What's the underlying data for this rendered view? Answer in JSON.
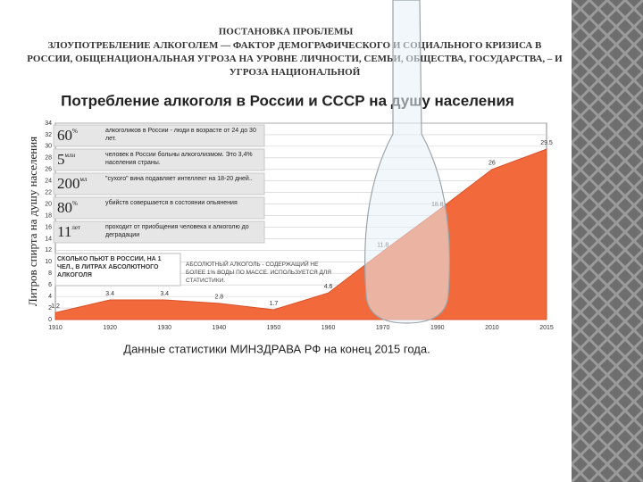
{
  "slide": {
    "heading": "ПОСТАНОВКА ПРОБЛЕМЫ",
    "subheading": "ЗЛОУПОТРЕБЛЕНИЕ АЛКОГОЛЕМ — ФАКТОР ДЕМОГРАФИЧЕСКОГО И СОЦИАЛЬНОГО КРИЗИСА В РОССИИ, ОБЩЕНАЦИОНАЛЬНАЯ УГРОЗА НА УРОВНЕ ЛИЧНОСТИ, СЕМЬИ, ОБЩЕСТВА, ГОСУДАРСТВА, – И УГРОЗА НАЦИОНАЛЬНОЙ",
    "caption": "Данные статистики МИНЗДРАВА РФ на конец 2015 года."
  },
  "facts": [
    {
      "number": "60",
      "unit": "%",
      "text": "алкоголиков в России - люди в возрасте от 24 до 30 лет."
    },
    {
      "number": "5",
      "unit": "млн",
      "text": "человек в России больны алкоголизмом. Это 3,4% населения страны."
    },
    {
      "number": "200",
      "unit": "мл",
      "text": "\"сухого\" вина подавляет интеллект на 18-20 дней.."
    },
    {
      "number": "80",
      "unit": "%",
      "text": "убийств совершается в состоянии опьянения"
    },
    {
      "number": "11",
      "unit": "лет",
      "text": "проходит от приобщения человека к алкоголю до деградации"
    }
  ],
  "notes": {
    "how_much": "СКОЛЬКО ПЬЮТ В РОССИИ, НА 1 ЧЕЛ., В ЛИТРАХ АБСОЛЮТНОГО АЛКОГОЛЯ",
    "definition": "АБСОЛЮТНЫЙ АЛКОГОЛЬ - СОДЕРЖАЩИЙ НЕ БОЛЕЕ 1% ВОДЫ ПО МАССЕ. ИСПОЛЬЗУЕТСЯ ДЛЯ СТАТИСТИКИ."
  },
  "chart_data": {
    "type": "area",
    "title": "Потребление алкоголя в России и СССР на душу населения",
    "y_label": "Литров спирта на душу населения",
    "categories": [
      "1910",
      "1920",
      "1930",
      "1940",
      "1950",
      "1960",
      "1970",
      "1990",
      "2010",
      "2015"
    ],
    "values": [
      1.2,
      3.4,
      3.4,
      2.8,
      1.7,
      4.6,
      11.8,
      18.8,
      26,
      29.5
    ],
    "color": "#f26a3c",
    "ylim": [
      0,
      34
    ],
    "yticks": [
      0,
      2,
      4,
      6,
      8,
      10,
      12,
      14,
      16,
      18,
      20,
      22,
      24,
      26,
      28,
      30,
      32,
      34
    ],
    "grid": true
  }
}
